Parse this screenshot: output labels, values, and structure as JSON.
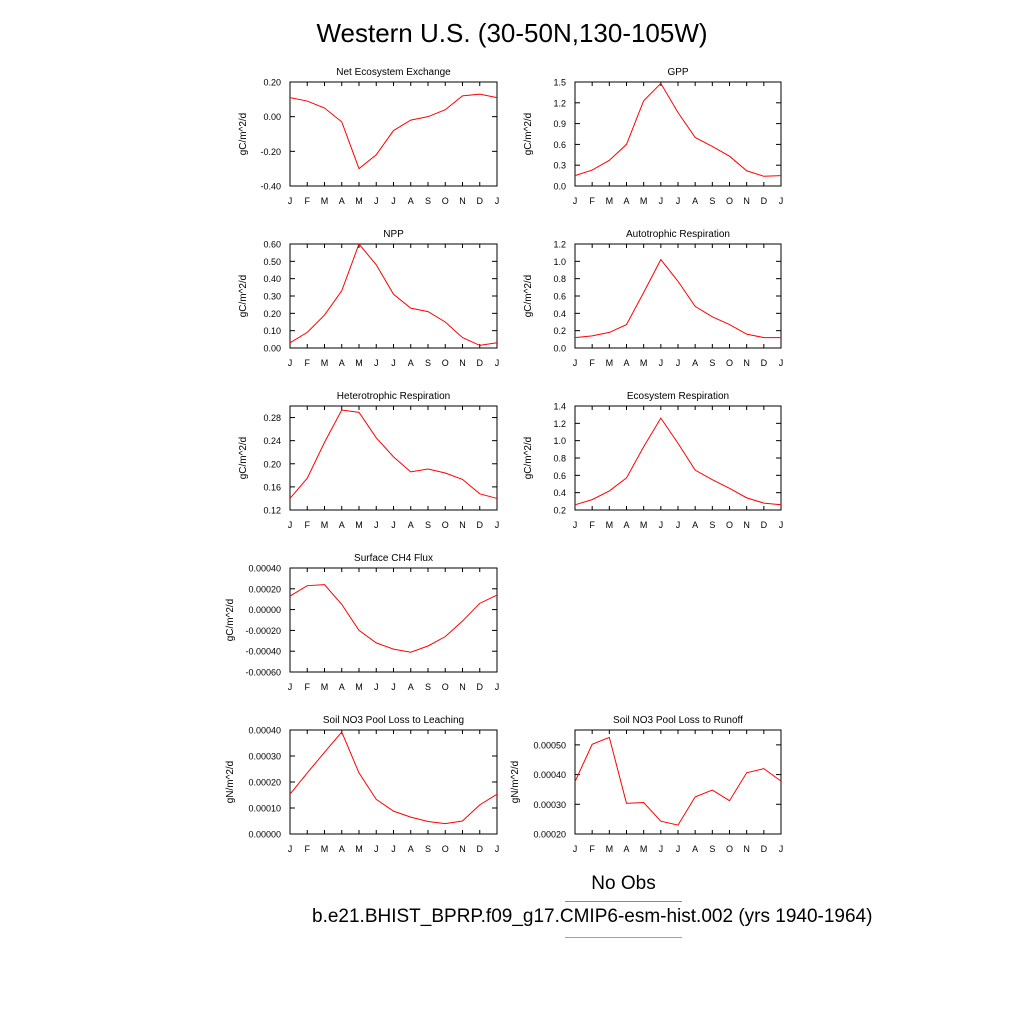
{
  "title": "Western U.S. (30-50N,130-105W)",
  "legend": {
    "obs_label": "No Obs",
    "case_label": "b.e21.BHIST_BPRP.f09_g17.CMIP6-esm-hist.002 (yrs 1940-1964)",
    "obs_color": "#7a7aff",
    "case_color": "#ff7a7a"
  },
  "chart_data": [
    {
      "type": "line",
      "title": "Net Ecosystem Exchange",
      "ylabel": "gC/m^2/d",
      "categories": [
        "J",
        "F",
        "M",
        "A",
        "M",
        "J",
        "J",
        "A",
        "S",
        "O",
        "N",
        "D",
        "J"
      ],
      "yticks": [
        "-0.40",
        "-0.20",
        "0.00",
        "0.20"
      ],
      "ylim": [
        -0.4,
        0.2
      ],
      "series": [
        {
          "values": [
            0.11,
            0.09,
            0.05,
            -0.03,
            -0.3,
            -0.22,
            -0.08,
            -0.02,
            0.0,
            0.04,
            0.12,
            0.13,
            0.11
          ],
          "color": "#ff0000"
        }
      ]
    },
    {
      "type": "line",
      "title": "GPP",
      "ylabel": "gC/m^2/d",
      "categories": [
        "J",
        "F",
        "M",
        "A",
        "M",
        "J",
        "J",
        "A",
        "S",
        "O",
        "N",
        "D",
        "J"
      ],
      "yticks": [
        "0.0",
        "0.3",
        "0.6",
        "0.9",
        "1.2",
        "1.5"
      ],
      "ylim": [
        0.0,
        1.5
      ],
      "series": [
        {
          "values": [
            0.15,
            0.23,
            0.37,
            0.6,
            1.23,
            1.48,
            1.06,
            0.7,
            0.57,
            0.43,
            0.22,
            0.14,
            0.15
          ],
          "color": "#ff0000"
        }
      ]
    },
    {
      "type": "line",
      "title": "NPP",
      "ylabel": "gC/m^2/d",
      "categories": [
        "J",
        "F",
        "M",
        "A",
        "M",
        "J",
        "J",
        "A",
        "S",
        "O",
        "N",
        "D",
        "J"
      ],
      "yticks": [
        "0.00",
        "0.10",
        "0.20",
        "0.30",
        "0.40",
        "0.50",
        "0.60"
      ],
      "ylim": [
        0.0,
        0.6
      ],
      "series": [
        {
          "values": [
            0.03,
            0.09,
            0.19,
            0.33,
            0.6,
            0.48,
            0.31,
            0.23,
            0.21,
            0.15,
            0.06,
            0.015,
            0.03
          ],
          "color": "#ff0000"
        }
      ]
    },
    {
      "type": "line",
      "title": "Autotrophic Respiration",
      "ylabel": "gC/m^2/d",
      "categories": [
        "J",
        "F",
        "M",
        "A",
        "M",
        "J",
        "J",
        "A",
        "S",
        "O",
        "N",
        "D",
        "J"
      ],
      "yticks": [
        "0.0",
        "0.2",
        "0.4",
        "0.6",
        "0.8",
        "1.0",
        "1.2"
      ],
      "ylim": [
        0.0,
        1.2
      ],
      "series": [
        {
          "values": [
            0.12,
            0.14,
            0.18,
            0.27,
            0.64,
            1.02,
            0.77,
            0.48,
            0.36,
            0.27,
            0.16,
            0.12,
            0.12
          ],
          "color": "#ff0000"
        }
      ]
    },
    {
      "type": "line",
      "title": "Heterotrophic Respiration",
      "ylabel": "gC/m^2/d",
      "categories": [
        "J",
        "F",
        "M",
        "A",
        "M",
        "J",
        "J",
        "A",
        "S",
        "O",
        "N",
        "D",
        "J"
      ],
      "yticks": [
        "0.12",
        "0.16",
        "0.20",
        "0.24",
        "0.28"
      ],
      "ylim": [
        0.12,
        0.3
      ],
      "series": [
        {
          "values": [
            0.14,
            0.175,
            0.237,
            0.293,
            0.289,
            0.245,
            0.212,
            0.186,
            0.191,
            0.184,
            0.173,
            0.148,
            0.14
          ],
          "color": "#ff0000"
        }
      ]
    },
    {
      "type": "line",
      "title": "Ecosystem Respiration",
      "ylabel": "gC/m^2/d",
      "categories": [
        "J",
        "F",
        "M",
        "A",
        "M",
        "J",
        "J",
        "A",
        "S",
        "O",
        "N",
        "D",
        "J"
      ],
      "yticks": [
        "0.2",
        "0.4",
        "0.6",
        "0.8",
        "1.0",
        "1.2",
        "1.4"
      ],
      "ylim": [
        0.2,
        1.4
      ],
      "series": [
        {
          "values": [
            0.26,
            0.32,
            0.42,
            0.57,
            0.93,
            1.26,
            0.97,
            0.66,
            0.55,
            0.45,
            0.34,
            0.28,
            0.26
          ],
          "color": "#ff0000"
        }
      ]
    },
    {
      "type": "line",
      "title": "Surface CH4 Flux",
      "ylabel": "gC/m^2/d",
      "categories": [
        "J",
        "F",
        "M",
        "A",
        "M",
        "J",
        "J",
        "A",
        "S",
        "O",
        "N",
        "D",
        "J"
      ],
      "yticks": [
        "-0.00060",
        "-0.00040",
        "-0.00020",
        "0.00000",
        "0.00020",
        "0.00040"
      ],
      "ylim": [
        -0.0006,
        0.0004
      ],
      "series": [
        {
          "values": [
            0.00013,
            0.00023,
            0.00024,
            5e-05,
            -0.0002,
            -0.00032,
            -0.00038,
            -0.00041,
            -0.00035,
            -0.00026,
            -0.00011,
            6e-05,
            0.00014
          ],
          "color": "#ff0000"
        }
      ]
    },
    {
      "type": "line",
      "title": "Soil NO3 Pool Loss to Leaching",
      "ylabel": "gN/m^2/d",
      "categories": [
        "J",
        "F",
        "M",
        "A",
        "M",
        "J",
        "J",
        "A",
        "S",
        "O",
        "N",
        "D",
        "J"
      ],
      "yticks": [
        "0.00000",
        "0.00010",
        "0.00020",
        "0.00030",
        "0.00040"
      ],
      "ylim": [
        0.0,
        0.0004
      ],
      "series": [
        {
          "values": [
            0.000153,
            0.000235,
            0.000314,
            0.000392,
            0.000235,
            0.000133,
            8.8e-05,
            6.5e-05,
            4.8e-05,
            4e-05,
            5e-05,
            0.000112,
            0.000153
          ],
          "color": "#ff0000"
        }
      ]
    },
    {
      "type": "line",
      "title": "Soil NO3 Pool Loss to Runoff",
      "ylabel": "gN/m^2/d",
      "categories": [
        "J",
        "F",
        "M",
        "A",
        "M",
        "J",
        "J",
        "A",
        "S",
        "O",
        "N",
        "D",
        "J"
      ],
      "yticks": [
        "0.00020",
        "0.00030",
        "0.00040",
        "0.00050"
      ],
      "ylim": [
        0.0002,
        0.00055
      ],
      "series": [
        {
          "values": [
            0.000376,
            0.000502,
            0.000525,
            0.000303,
            0.000306,
            0.000243,
            0.00023,
            0.000325,
            0.000348,
            0.000312,
            0.000406,
            0.00042,
            0.000378
          ],
          "color": "#ff0000"
        }
      ]
    }
  ]
}
